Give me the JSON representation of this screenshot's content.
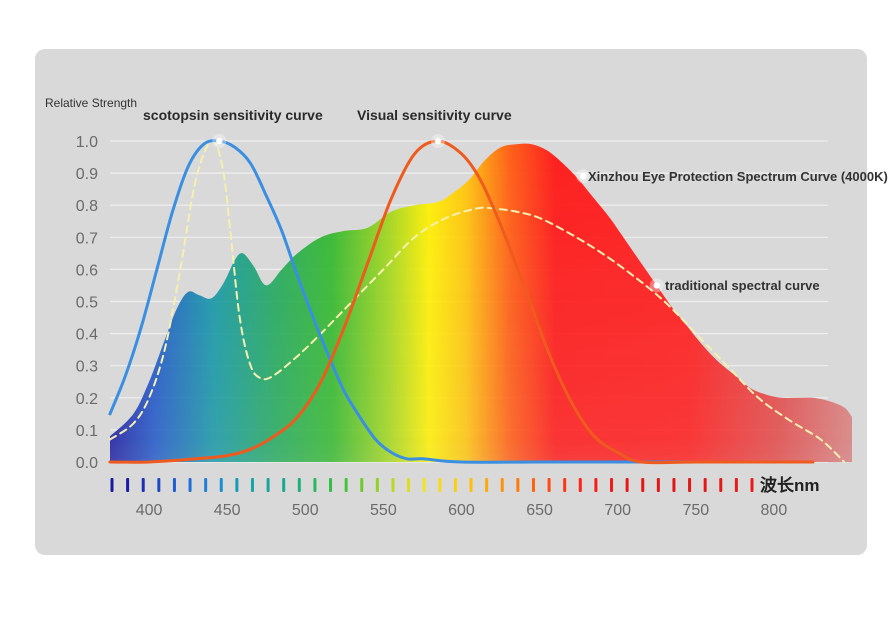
{
  "chart_data": {
    "type": "line",
    "ylabel": "Relative Strength",
    "xlabel": "波长nm",
    "xlim": [
      375,
      850
    ],
    "ylim": [
      0,
      1.0
    ],
    "x_ticks": [
      "400",
      "450",
      "500",
      "550",
      "600",
      "650",
      "700",
      "750",
      "800"
    ],
    "y_ticks": [
      "0.0",
      "0.1",
      "0.2",
      "0.3",
      "0.4",
      "0.5",
      "0.6",
      "0.7",
      "0.8",
      "0.9",
      "1.0"
    ],
    "grid": true,
    "series": [
      {
        "name": "Xinzhou Eye Protection Spectrum Curve (4000K)",
        "style": "filled-spectrum",
        "x": [
          375,
          390,
          400,
          410,
          418,
          425,
          432,
          440,
          448,
          455,
          460,
          467,
          475,
          485,
          495,
          510,
          525,
          540,
          555,
          570,
          585,
          595,
          605,
          615,
          625,
          635,
          645,
          655,
          665,
          675,
          685,
          695,
          705,
          715,
          725,
          735,
          745,
          755,
          765,
          775,
          785,
          795,
          805,
          815,
          825,
          835,
          845,
          850
        ],
        "y": [
          0.08,
          0.15,
          0.25,
          0.38,
          0.48,
          0.53,
          0.52,
          0.51,
          0.56,
          0.63,
          0.65,
          0.61,
          0.55,
          0.6,
          0.65,
          0.7,
          0.72,
          0.73,
          0.78,
          0.8,
          0.81,
          0.84,
          0.88,
          0.94,
          0.98,
          0.99,
          0.99,
          0.97,
          0.93,
          0.88,
          0.82,
          0.76,
          0.69,
          0.62,
          0.55,
          0.48,
          0.42,
          0.36,
          0.31,
          0.27,
          0.23,
          0.21,
          0.2,
          0.2,
          0.2,
          0.19,
          0.17,
          0.14
        ],
        "color": "#ff1a1a"
      },
      {
        "name": "traditional spectral curve",
        "style": "dashed",
        "x": [
          375,
          390,
          400,
          410,
          420,
          430,
          440,
          447,
          452,
          458,
          465,
          472,
          480,
          495,
          510,
          530,
          550,
          570,
          590,
          610,
          620,
          635,
          650,
          670,
          690,
          710,
          730,
          750,
          770,
          790,
          810,
          830,
          845
        ],
        "y": [
          0.07,
          0.12,
          0.2,
          0.35,
          0.6,
          0.88,
          1.0,
          0.92,
          0.72,
          0.45,
          0.3,
          0.26,
          0.27,
          0.33,
          0.4,
          0.5,
          0.6,
          0.7,
          0.76,
          0.79,
          0.79,
          0.78,
          0.76,
          0.71,
          0.65,
          0.58,
          0.5,
          0.4,
          0.3,
          0.2,
          0.13,
          0.07,
          0.0
        ],
        "color": "#f5f0b0"
      },
      {
        "name": "scotopsin sensitivity curve",
        "style": "solid",
        "x": [
          375,
          385,
          395,
          405,
          415,
          425,
          435,
          445,
          455,
          465,
          475,
          485,
          495,
          505,
          515,
          525,
          535,
          545,
          555,
          565,
          575,
          600,
          650,
          700,
          750,
          800,
          825
        ],
        "y": [
          0.15,
          0.27,
          0.42,
          0.6,
          0.78,
          0.92,
          0.99,
          1.0,
          0.98,
          0.93,
          0.83,
          0.72,
          0.58,
          0.45,
          0.33,
          0.22,
          0.14,
          0.07,
          0.03,
          0.01,
          0.01,
          0.0,
          0.0,
          0.0,
          0.0,
          0.0,
          0.0
        ],
        "color": "#3a8fe0"
      },
      {
        "name": "Visual sensitivity curve",
        "style": "solid",
        "x": [
          375,
          400,
          430,
          450,
          465,
          480,
          495,
          510,
          525,
          540,
          555,
          570,
          585,
          600,
          612,
          625,
          640,
          655,
          670,
          685,
          700,
          715,
          750,
          800,
          825
        ],
        "y": [
          0.0,
          0.0,
          0.01,
          0.02,
          0.04,
          0.08,
          0.14,
          0.25,
          0.42,
          0.62,
          0.82,
          0.96,
          1.0,
          0.96,
          0.88,
          0.74,
          0.55,
          0.35,
          0.19,
          0.08,
          0.03,
          0.0,
          0.0,
          0.0,
          0.0
        ],
        "color": "#ef5a1e"
      }
    ],
    "annotations": [
      {
        "text": "scotopsin sensitivity curve",
        "x": 445,
        "y": 1.0
      },
      {
        "text": "Visual sensitivity curve",
        "x": 585,
        "y": 1.0
      },
      {
        "text": "Xinzhou Eye Protection Spectrum Curve (4000K)",
        "x": 678,
        "y": 0.89
      },
      {
        "text": "traditional spectral curve",
        "x": 725,
        "y": 0.55
      }
    ],
    "colors": {
      "panel": "#d8d8d8",
      "grid": "#efefef",
      "visible_spectrum": [
        "#1a1aa8",
        "#1f6fd6",
        "#17a59e",
        "#28b533",
        "#d7e21a",
        "#ffd20d",
        "#ff8a0a",
        "#ff1212",
        "#ff1a1a",
        "#e34040"
      ]
    }
  }
}
